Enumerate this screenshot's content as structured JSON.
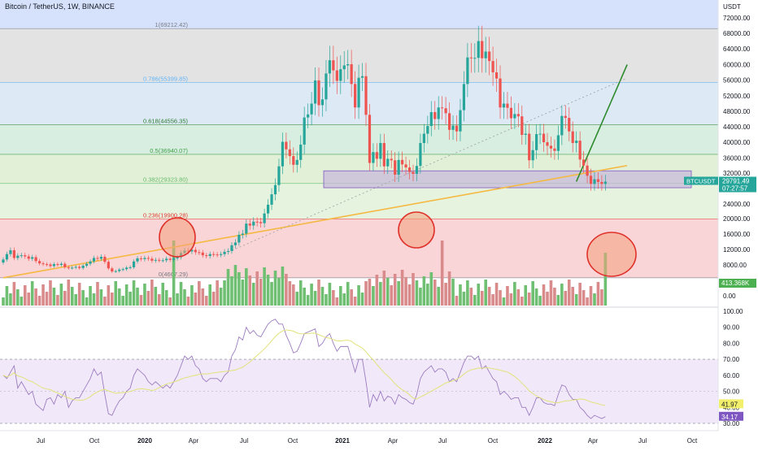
{
  "header": {
    "title": "Bitcoin / TetherUS, 1W, BINANCE",
    "currency": "USDT"
  },
  "colors": {
    "up": "#26a69a",
    "down": "#ef5350",
    "vol_up": "#6fbf73",
    "vol_down": "#d98b8b",
    "trend_orange": "#f5b942",
    "arrow_green": "#2e8b2e",
    "rsi_line": "#9c7cc0",
    "rsi_ma": "#e2e27a",
    "rsi_band": "#ede4f7"
  },
  "fib_levels": [
    {
      "label": "1(69212.42)",
      "value": 69212.42,
      "color": "#787b86",
      "fill": "#e3e3e3"
    },
    {
      "label": "0.786(55399.85)",
      "value": 55399.85,
      "color": "#64b5f6",
      "fill": "#dde9f5"
    },
    {
      "label": "0.618(44556.35)",
      "value": 44556.35,
      "color": "#2e7d32",
      "fill": "#d7eee1"
    },
    {
      "label": "0.5(36940.07)",
      "value": 36940.07,
      "color": "#43a047",
      "fill": "#e3f0d8"
    },
    {
      "label": "0.382(29323.80)",
      "value": 29323.8,
      "color": "#66bb6a",
      "fill": "#e6f3de"
    },
    {
      "label": "0.236(19900.28)",
      "value": 19900.28,
      "color": "#e53935",
      "fill": "#f9d5d7"
    },
    {
      "label": "0(4667.29)",
      "value": 4667.29,
      "color": "#787b86",
      "fill": "#ffffff"
    }
  ],
  "price_axis": {
    "ticks": [
      "72000.00",
      "68000.00",
      "64000.00",
      "60000.00",
      "56000.00",
      "52000.00",
      "48000.00",
      "44000.00",
      "40000.00",
      "36000.00",
      "32000.00",
      "24000.00",
      "20000.00",
      "16000.00",
      "12000.00",
      "8000.00",
      "0.00"
    ],
    "tick_values": [
      72000,
      68000,
      64000,
      60000,
      56000,
      52000,
      48000,
      44000,
      40000,
      36000,
      32000,
      24000,
      20000,
      16000,
      12000,
      8000,
      0
    ],
    "ylim": [
      0,
      75000
    ]
  },
  "price_labels": {
    "symbol": "BTCUSDT",
    "last": "29791.49",
    "countdown": "07:27:57",
    "volume": "413.368K"
  },
  "rsi_axis": {
    "ticks": [
      "100.00",
      "90.00",
      "80.00",
      "70.00",
      "60.00",
      "50.00",
      "40.00",
      "30.00"
    ],
    "ylim": [
      30,
      100
    ],
    "ma_label": "41.97",
    "rsi_label": "34.17"
  },
  "time_axis": {
    "labels": [
      "Jul",
      "Oct",
      "2020",
      "Apr",
      "Jul",
      "Oct",
      "2021",
      "Apr",
      "Jul",
      "Oct",
      "2022",
      "Apr",
      "Jul",
      "Oct"
    ],
    "bold": [
      false,
      false,
      true,
      false,
      false,
      false,
      true,
      false,
      false,
      false,
      true,
      false,
      false,
      false
    ]
  },
  "chart_data": {
    "type": "candlestick",
    "timeframe": "1W",
    "closes": [
      9400,
      10800,
      11800,
      9800,
      10400,
      10500,
      10200,
      9600,
      10000,
      9000,
      8400,
      8200,
      8100,
      7700,
      8200,
      8000,
      8300,
      7400,
      7200,
      7300,
      7500,
      7200,
      7800,
      8300,
      8900,
      9800,
      9600,
      10100,
      8800,
      7100,
      6300,
      6400,
      6800,
      6900,
      7300,
      7400,
      8900,
      9700,
      9500,
      9800,
      9600,
      9100,
      9300,
      9200,
      9200,
      9600,
      9300,
      9700,
      10000,
      11100,
      11700,
      11500,
      11900,
      11300,
      11200,
      10500,
      10300,
      10800,
      10700,
      10600,
      10800,
      11400,
      11600,
      13100,
      13800,
      15800,
      16100,
      18700,
      18200,
      19200,
      19100,
      18800,
      21400,
      23800,
      26500,
      28900,
      33800,
      40100,
      38200,
      36500,
      34200,
      35500,
      39400,
      46400,
      47200,
      50000,
      55900,
      49600,
      51100,
      57700,
      61100,
      58500,
      55800,
      58800,
      59800,
      60100,
      55000,
      49000,
      56600,
      57000,
      47100,
      34700,
      37500,
      35800,
      39800,
      33800,
      35800,
      35400,
      31600,
      35500,
      34300,
      33500,
      32300,
      31800,
      33900,
      39800,
      42200,
      44200,
      47800,
      46000,
      49000,
      48800,
      47500,
      43200,
      44300,
      42800,
      48300,
      55000,
      61800,
      61600,
      61700,
      66000,
      61600,
      63300,
      60900,
      58000,
      56400,
      49000,
      50000,
      48900,
      46200,
      47300,
      46700,
      41900,
      42200,
      35400,
      38000,
      42100,
      42200,
      40000,
      39100,
      38400,
      37800,
      41800,
      46800,
      46300,
      42800,
      39800,
      40400,
      35600,
      34000,
      31300,
      29200,
      30400,
      29700,
      29200,
      29790
    ],
    "start_close": 8600,
    "volume_scale": "weekly volume (relative)",
    "trend_lines": [
      {
        "name": "orange-support",
        "from": [
          0,
          4667.29
        ],
        "to": [
          172,
          34000
        ]
      },
      {
        "name": "green-projection",
        "from": [
          158,
          29791
        ],
        "to": [
          172,
          60000
        ]
      },
      {
        "name": "dotted-trend",
        "from": [
          60,
          10500
        ],
        "to": [
          172,
          56500
        ]
      }
    ],
    "highlight_zone": [
      28200,
      32600
    ],
    "rsi": [
      60,
      58,
      62,
      66,
      52,
      56,
      52,
      48,
      50,
      42,
      40,
      38,
      45,
      46,
      42,
      48,
      46,
      50,
      40,
      44,
      46,
      46,
      50,
      54,
      58,
      64,
      60,
      62,
      48,
      36,
      35,
      40,
      44,
      46,
      50,
      52,
      60,
      64,
      62,
      60,
      56,
      54,
      56,
      54,
      52,
      54,
      52,
      56,
      60,
      66,
      72,
      70,
      72,
      66,
      64,
      58,
      56,
      58,
      58,
      58,
      56,
      60,
      62,
      72,
      76,
      84,
      82,
      90,
      86,
      88,
      85,
      84,
      88,
      92,
      94,
      95,
      92,
      92,
      85,
      80,
      74,
      75,
      80,
      86,
      87,
      88,
      89,
      78,
      80,
      84,
      86,
      80,
      75,
      78,
      78,
      78,
      70,
      62,
      70,
      70,
      56,
      40,
      48,
      44,
      50,
      44,
      47,
      46,
      42,
      48,
      46,
      45,
      43,
      42,
      48,
      58,
      62,
      64,
      66,
      62,
      64,
      64,
      62,
      56,
      58,
      56,
      62,
      68,
      72,
      72,
      70,
      72,
      64,
      66,
      62,
      58,
      56,
      48,
      50,
      48,
      45,
      46,
      46,
      40,
      40,
      35,
      40,
      46,
      46,
      43,
      42,
      42,
      41,
      48,
      54,
      53,
      48,
      45,
      45,
      40,
      38,
      35,
      33,
      35,
      34,
      33,
      34.17
    ],
    "rsi_ma_last": 41.97,
    "annotations": [
      "volume spike 2020-03",
      "volume spike 2021-05",
      "volume spike 2022-06"
    ]
  }
}
